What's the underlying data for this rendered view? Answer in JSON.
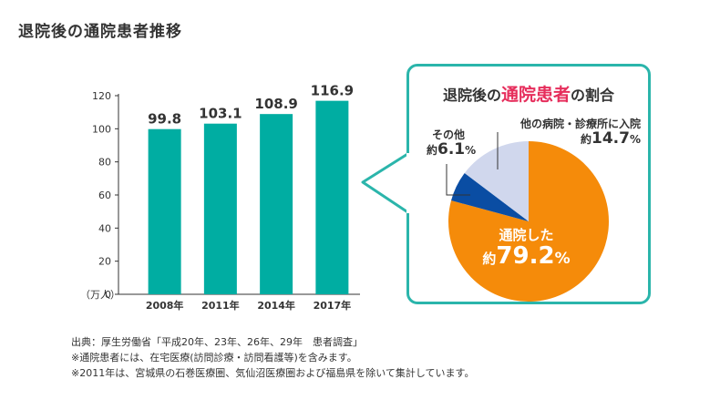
{
  "title": "退院後の通院患者推移",
  "colors": {
    "bar": "#00ada2",
    "border": "#2bb5ab",
    "highlight": "#e62e5c",
    "pie_main": "#f58b0a",
    "pie_other": "#0a4da3",
    "pie_hospital": "#d0d7ed"
  },
  "chart_data": [
    {
      "type": "bar",
      "title": "",
      "categories": [
        "2008年",
        "2011年",
        "2014年",
        "2017年"
      ],
      "values": [
        99.8,
        103.1,
        108.9,
        116.9
      ],
      "value_labels": [
        "99.8",
        "103.1",
        "108.9",
        "116.9"
      ],
      "yticks": [
        0,
        20,
        40,
        60,
        80,
        100,
        120
      ],
      "ylim": [
        0,
        120
      ],
      "ylabel": "（万人）",
      "xlabel": "",
      "grid": false
    },
    {
      "type": "pie",
      "title_parts": [
        "退院後の",
        "通院患者",
        "の割合"
      ],
      "slices": [
        {
          "name": "通院した",
          "value": 79.2,
          "color": "#f58b0a"
        },
        {
          "name": "その他",
          "value": 6.1,
          "color": "#0a4da3"
        },
        {
          "name": "他の病院・診療所に入院",
          "value": 14.7,
          "color": "#d0d7ed"
        }
      ],
      "labels": {
        "main": {
          "name": "通院した",
          "prefix": "約",
          "num": "79.2",
          "pct": "%"
        },
        "other": {
          "name": "その他",
          "prefix": "約",
          "num": "6.1",
          "pct": "%"
        },
        "hospital": {
          "name": "他の病院・診療所に入院",
          "prefix": "約",
          "num": "14.7",
          "pct": "%"
        }
      }
    }
  ],
  "notes": [
    "出典：厚生労働省「平成20年、23年、26年、29年　患者調査」",
    "※通院患者には、在宅医療(訪問診療・訪問看護等)を含みます。",
    "※2011年は、宮城県の石巻医療圏、気仙沼医療圏および福島県を除いて集計しています。"
  ]
}
